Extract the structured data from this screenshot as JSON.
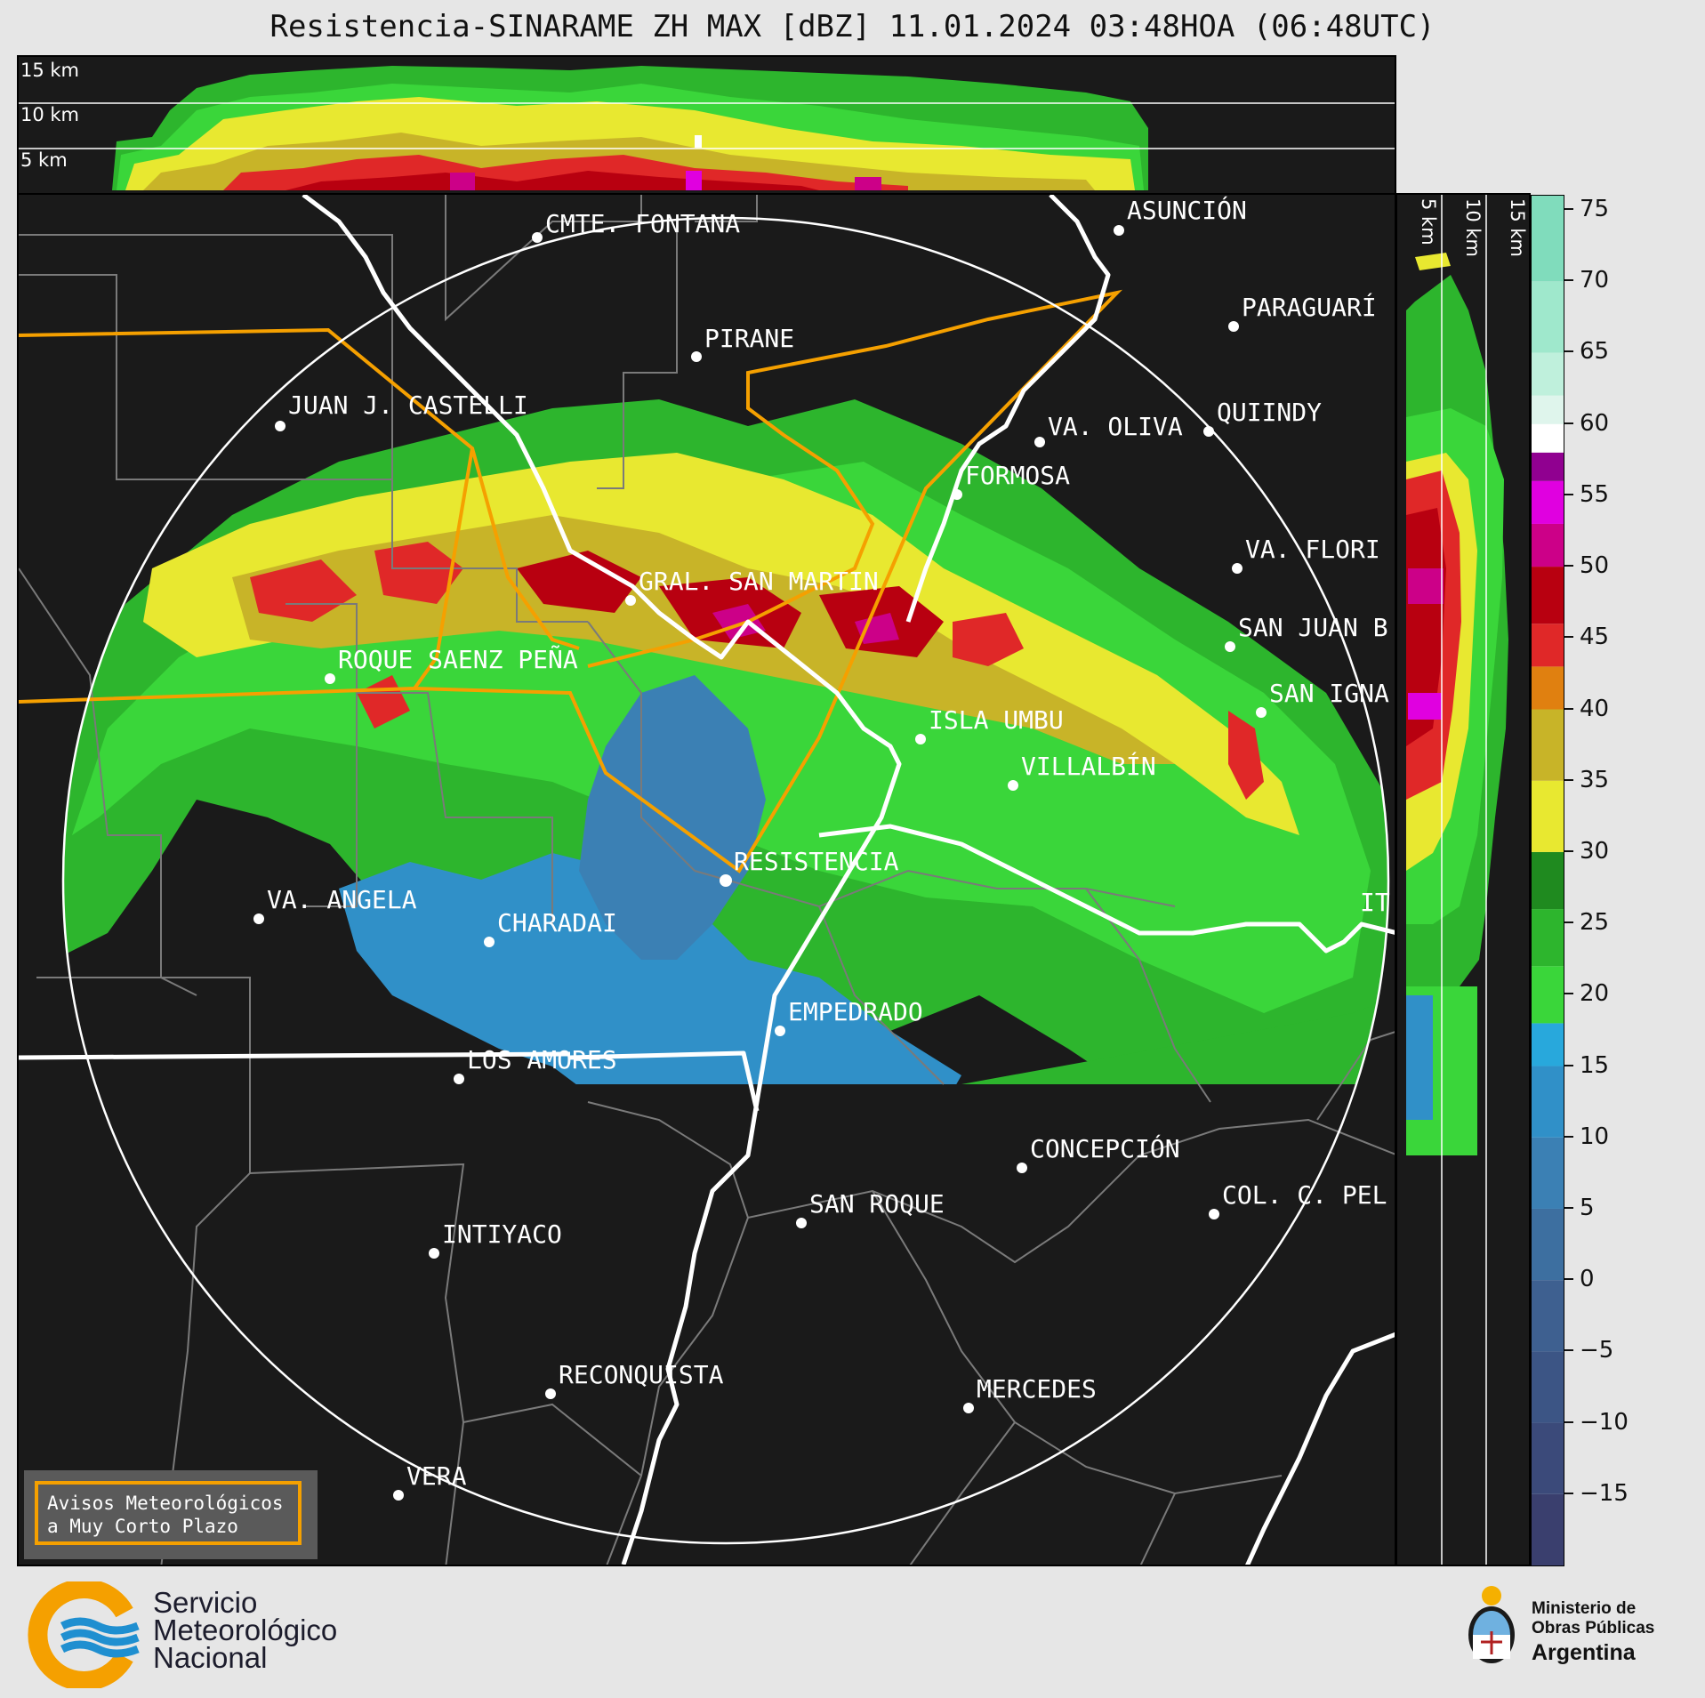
{
  "title": "Resistencia-SINARAME ZH MAX [dBZ] 11.01.2024 03:48HOA (06:48UTC)",
  "top_panel": {
    "altitude_labels": [
      "15 km",
      "10 km",
      "5 km"
    ]
  },
  "side_panel": {
    "altitude_labels": [
      "5 km",
      "10 km",
      "15 km"
    ]
  },
  "map": {
    "cities": [
      {
        "name": "CMTE. FONTANA",
        "icon": "city-dot-icon"
      },
      {
        "name": "ASUNCIÓN",
        "icon": "city-dot-icon"
      },
      {
        "name": "PIRANE",
        "icon": "city-dot-icon"
      },
      {
        "name": "PARAGUARÍ",
        "icon": "city-dot-icon"
      },
      {
        "name": "JUAN J. CASTELLI",
        "icon": "city-dot-icon"
      },
      {
        "name": "VA. OLIVA",
        "icon": "city-dot-icon"
      },
      {
        "name": "QUIINDY",
        "icon": "city-dot-icon"
      },
      {
        "name": "FORMOSA",
        "icon": "city-dot-icon"
      },
      {
        "name": "VA. FLORI",
        "icon": "city-dot-icon"
      },
      {
        "name": "GRAL. SAN MARTIN",
        "icon": "city-dot-icon"
      },
      {
        "name": "SAN JUAN B",
        "icon": "city-dot-icon"
      },
      {
        "name": "ROQUE SAENZ PEÑA",
        "icon": "city-dot-icon"
      },
      {
        "name": "SAN IGNA",
        "icon": "city-dot-icon"
      },
      {
        "name": "ISLA UMBU",
        "icon": "city-dot-icon"
      },
      {
        "name": "VILLALBÍN",
        "icon": "city-dot-icon"
      },
      {
        "name": "RESISTENCIA",
        "icon": "radar-site-icon"
      },
      {
        "name": "VA. ANGELA",
        "icon": "city-dot-icon"
      },
      {
        "name": "CHARADAI",
        "icon": "city-dot-icon"
      },
      {
        "name": "IT",
        "icon": "city-dot-icon"
      },
      {
        "name": "EMPEDRADO",
        "icon": "city-dot-icon"
      },
      {
        "name": "LOS AMORES",
        "icon": "city-dot-icon"
      },
      {
        "name": "CONCEPCIÓN",
        "icon": "city-dot-icon"
      },
      {
        "name": "SAN ROQUE",
        "icon": "city-dot-icon"
      },
      {
        "name": "COL. C. PEL",
        "icon": "city-dot-icon"
      },
      {
        "name": "INTIYACO",
        "icon": "city-dot-icon"
      },
      {
        "name": "RECONQUISTA",
        "icon": "city-dot-icon"
      },
      {
        "name": "MERCEDES",
        "icon": "city-dot-icon"
      },
      {
        "name": "VERA",
        "icon": "city-dot-icon"
      }
    ],
    "colors": {
      "background": "#1a1a1a",
      "rivers": "#ffffff",
      "borders": "#7a7a7a",
      "highlight_region": "#f5a000",
      "range_ring": "#ffffff"
    }
  },
  "colorbar": {
    "unit": "dBZ",
    "ticks": [
      75,
      70,
      65,
      60,
      55,
      50,
      45,
      40,
      35,
      30,
      25,
      20,
      15,
      10,
      5,
      0,
      -5,
      -10,
      -15
    ],
    "tick_labels": [
      "75",
      "70",
      "65",
      "60",
      "55",
      "50",
      "45",
      "40",
      "35",
      "30",
      "25",
      "20",
      "15",
      "10",
      "5",
      "0",
      "−5",
      "−10",
      "−15"
    ],
    "range": [
      -20,
      76
    ],
    "bands": [
      {
        "from": -20,
        "to": -15,
        "color": "#3a3f6e"
      },
      {
        "from": -15,
        "to": -10,
        "color": "#3b4a7a"
      },
      {
        "from": -10,
        "to": -5,
        "color": "#3c5585"
      },
      {
        "from": -5,
        "to": 0,
        "color": "#3e6090"
      },
      {
        "from": 0,
        "to": 5,
        "color": "#3d6fa0"
      },
      {
        "from": 5,
        "to": 10,
        "color": "#3b80b4"
      },
      {
        "from": 10,
        "to": 15,
        "color": "#3090c8"
      },
      {
        "from": 15,
        "to": 18,
        "color": "#28a8dc"
      },
      {
        "from": 18,
        "to": 22,
        "color": "#3ad63a"
      },
      {
        "from": 22,
        "to": 26,
        "color": "#2db52d"
      },
      {
        "from": 26,
        "to": 30,
        "color": "#1f8a1f"
      },
      {
        "from": 30,
        "to": 35,
        "color": "#e8e830"
      },
      {
        "from": 35,
        "to": 40,
        "color": "#c8b428"
      },
      {
        "from": 40,
        "to": 43,
        "color": "#e08010"
      },
      {
        "from": 43,
        "to": 46,
        "color": "#e02828"
      },
      {
        "from": 46,
        "to": 50,
        "color": "#b80010"
      },
      {
        "from": 50,
        "to": 53,
        "color": "#cc0088"
      },
      {
        "from": 53,
        "to": 56,
        "color": "#e000e0"
      },
      {
        "from": 56,
        "to": 58,
        "color": "#900090"
      },
      {
        "from": 58,
        "to": 60,
        "color": "#ffffff"
      },
      {
        "from": 60,
        "to": 62,
        "color": "#dff5ec"
      },
      {
        "from": 62,
        "to": 65,
        "color": "#bff0dc"
      },
      {
        "from": 65,
        "to": 70,
        "color": "#9fe8cc"
      },
      {
        "from": 70,
        "to": 76,
        "color": "#80dcbc"
      }
    ]
  },
  "alert_box": {
    "line1": "Avisos Meteorológicos",
    "line2": "a Muy Corto Plazo",
    "border_color": "#f5a000"
  },
  "footer": {
    "smn": {
      "line1": "Servicio",
      "line2": "Meteorológico",
      "line3": "Nacional",
      "icon": "smn-logo-icon"
    },
    "ministry": {
      "line1": "Ministerio de",
      "line2": "Obras Públicas",
      "line3": "Argentina",
      "icon": "argentina-coat-of-arms-icon"
    }
  }
}
